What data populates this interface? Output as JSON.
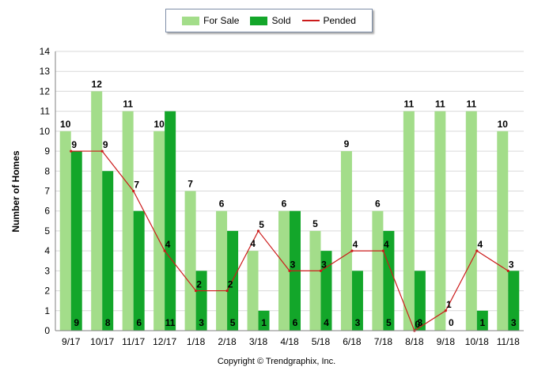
{
  "legend": {
    "for_sale": "For Sale",
    "sold": "Sold",
    "pended": "Pended"
  },
  "copyright": "Copyright © Trendgraphix, Inc.",
  "colors": {
    "for_sale": "#a3dd8a",
    "sold": "#13a62a",
    "pended": "#cc1b1b",
    "grid": "#d9d9d9"
  },
  "chart_data": {
    "type": "bar",
    "ylabel": "Number of Homes",
    "xlabel": "",
    "ylim": [
      0,
      14
    ],
    "yticks": [
      0,
      1,
      2,
      3,
      4,
      5,
      6,
      7,
      8,
      9,
      10,
      11,
      12,
      13,
      14
    ],
    "grid": true,
    "legend_position": "top-center",
    "categories": [
      "9/17",
      "10/17",
      "11/17",
      "12/17",
      "1/18",
      "2/18",
      "3/18",
      "4/18",
      "5/18",
      "6/18",
      "7/18",
      "8/18",
      "9/18",
      "10/18",
      "11/18"
    ],
    "series": [
      {
        "name": "For Sale",
        "type": "bar",
        "values": [
          10,
          12,
          11,
          10,
          7,
          6,
          4,
          6,
          5,
          9,
          6,
          11,
          11,
          11,
          10
        ]
      },
      {
        "name": "Sold",
        "type": "bar",
        "values": [
          9,
          8,
          6,
          11,
          3,
          5,
          1,
          6,
          4,
          3,
          5,
          3,
          0,
          1,
          3
        ]
      },
      {
        "name": "Pended",
        "type": "line",
        "values": [
          9,
          9,
          7,
          4,
          2,
          2,
          5,
          3,
          3,
          4,
          4,
          0,
          1,
          4,
          3
        ]
      }
    ]
  }
}
